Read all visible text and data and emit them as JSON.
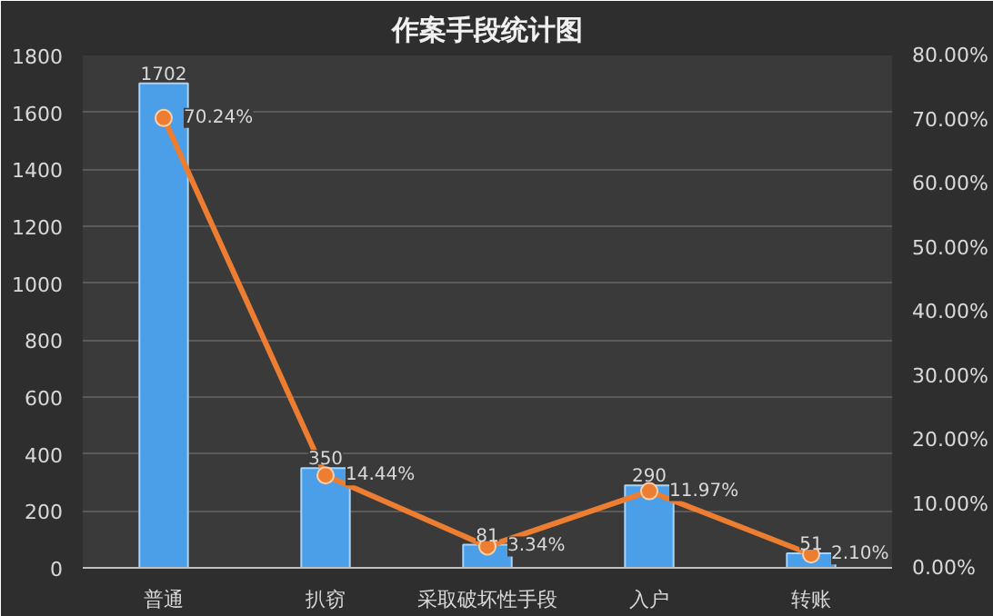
{
  "chart_data": {
    "type": "bar",
    "title": "作案手段统计图",
    "categories": [
      "普通",
      "扒窃",
      "采取破坏性手段",
      "入户",
      "转账"
    ],
    "series": [
      {
        "color": "#4a9fe8",
        "values": [
          1702,
          350,
          81,
          290,
          51
        ],
        "value_labels": [
          "1702",
          "350",
          "81",
          "290",
          "51"
        ]
      },
      {
        "type": "line",
        "axis": "y2",
        "color": "#ed7d31",
        "values": [
          70.24,
          14.44,
          3.34,
          11.97,
          2.1
        ],
        "value_labels": [
          "70.24%",
          "14.44%",
          "3.34%",
          "11.97%",
          "2.10%"
        ]
      }
    ],
    "ylim": [
      0,
      1800
    ],
    "yticks": [
      0,
      200,
      400,
      600,
      800,
      1000,
      1200,
      1400,
      1600,
      1800
    ],
    "y2lim": [
      0,
      80
    ],
    "y2ticks": [
      {
        "value": 0,
        "label": "0.00%"
      },
      {
        "value": 10,
        "label": "10.00%"
      },
      {
        "value": 20,
        "label": "20.00%"
      },
      {
        "value": 30,
        "label": "30.00%"
      },
      {
        "value": 40,
        "label": "40.00%"
      },
      {
        "value": 50,
        "label": "50.00%"
      },
      {
        "value": 60,
        "label": "60.00%"
      },
      {
        "value": 70,
        "label": "70.00%"
      },
      {
        "value": 80,
        "label": "80.00%"
      }
    ],
    "grid": "y",
    "marker": "circle",
    "line_style": "solid"
  }
}
